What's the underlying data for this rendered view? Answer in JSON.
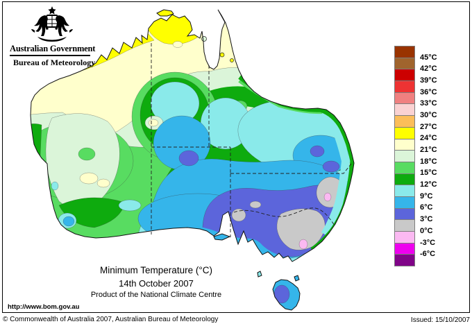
{
  "header": {
    "government_title": "Australian Government",
    "agency_title": "Bureau of Meteorology"
  },
  "titles": {
    "main": "Minimum Temperature (°C)",
    "date": "14th October 2007",
    "product_line": "Product of the National Climate Centre",
    "url": "http://www.bom.gov.au"
  },
  "footer": {
    "copyright": "© Commonwealth of Australia 2007, Australian Bureau of Meteorology",
    "issued": "Issued: 15/10/2007"
  },
  "legend": {
    "unit": "°C",
    "entries": [
      {
        "color": "#993300",
        "label": "45°C"
      },
      {
        "color": "#A0642D",
        "label": "42°C"
      },
      {
        "color": "#CC0000",
        "label": "39°C"
      },
      {
        "color": "#EE3333",
        "label": "36°C"
      },
      {
        "color": "#F08080",
        "label": "33°C"
      },
      {
        "color": "#FAD2D2",
        "label": "30°C"
      },
      {
        "color": "#FCBE5A",
        "label": "27°C"
      },
      {
        "color": "#FFFF00",
        "label": "24°C"
      },
      {
        "color": "#FFFFCC",
        "label": "21°C"
      },
      {
        "color": "#DBF5D9",
        "label": "18°C"
      },
      {
        "color": "#58DC61",
        "label": "15°C"
      },
      {
        "color": "#0EAB0E",
        "label": "12°C"
      },
      {
        "color": "#8AEAEA",
        "label": "9°C"
      },
      {
        "color": "#35B5EA",
        "label": "6°C"
      },
      {
        "color": "#5C65DB",
        "label": "3°C"
      },
      {
        "color": "#C9C9C9",
        "label": "0°C"
      },
      {
        "color": "#FBB9F2",
        "label": "-3°C"
      },
      {
        "color": "#EE00EE",
        "label": "-6°C"
      },
      {
        "color": "#800488",
        "label": ""
      }
    ]
  },
  "mc": {
    "c24_27": "#FFFF00",
    "c21_24": "#FFFFCC",
    "c18_21": "#DBF5D9",
    "c15_18": "#58DC61",
    "c12_15": "#0EAB0E",
    "c9_12": "#8AEAEA",
    "c6_9": "#35B5EA",
    "c3_6": "#5C65DB",
    "c0_3": "#C9C9C9",
    "cm3_0": "#FBB9F2"
  },
  "chart_data": {
    "type": "heatmap",
    "title": "Minimum Temperature (°C)",
    "date": "14th October 2007",
    "region": "Australia",
    "unit": "°C",
    "scale_boundaries_celsius": [
      45,
      42,
      39,
      36,
      33,
      30,
      27,
      24,
      21,
      18,
      15,
      12,
      9,
      6,
      3,
      0,
      -3,
      -6
    ],
    "scale_colors_top_to_bottom": [
      "#993300",
      "#A0642D",
      "#CC0000",
      "#EE3333",
      "#F08080",
      "#FAD2D2",
      "#FCBE5A",
      "#FFFF00",
      "#FFFFCC",
      "#DBF5D9",
      "#58DC61",
      "#0EAB0E",
      "#8AEAEA",
      "#35B5EA",
      "#5C65DB",
      "#C9C9C9",
      "#FBB9F2",
      "#EE00EE",
      "#800488"
    ],
    "observed_range_on_map_celsius": [
      -3,
      27
    ],
    "notes": "Warmest minima 24-27°C (yellow) along far north coast; 21-24°C Cape York and NW interior; greens across central belt; 9-12 and 6-9°C through interior south-east; 3-6°C inland SE and Tasmania centre; 0-3°C (grey) with -3-0°C (pink) pockets over SE highlands."
  }
}
